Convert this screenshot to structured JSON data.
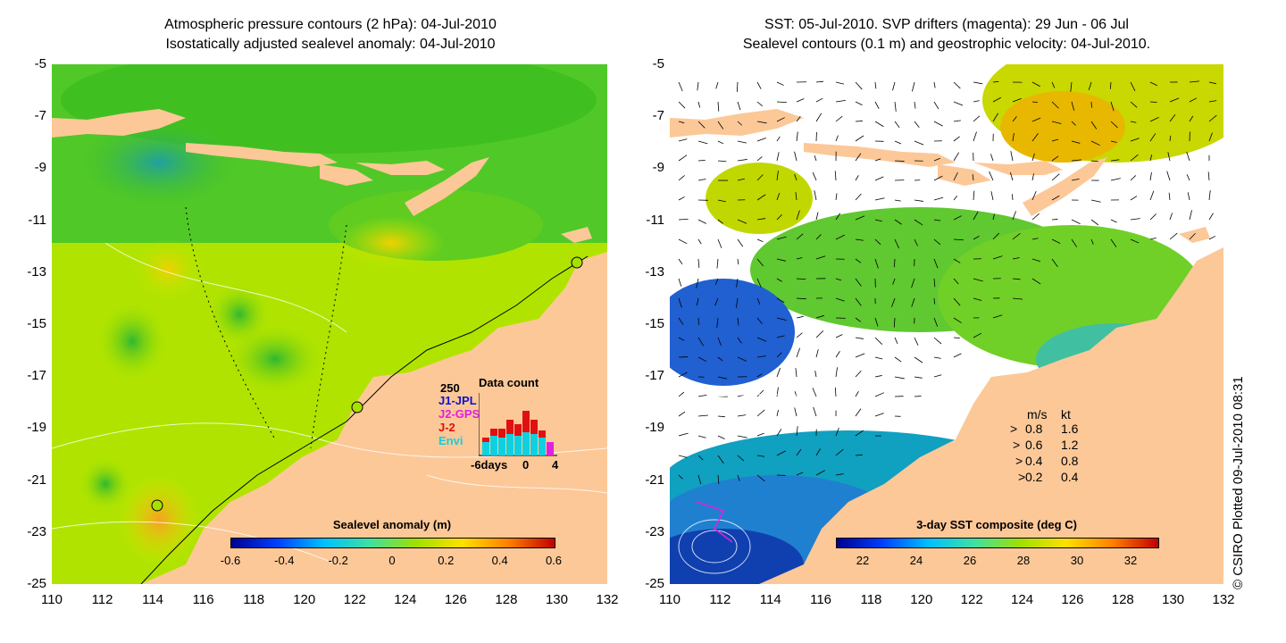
{
  "left_panel": {
    "title_line1": "Atmospheric pressure contours (2 hPa): 04-Jul-2010",
    "title_line2": "Isostatically adjusted sealevel anomaly: 04-Jul-2010",
    "colorbar_title": "Sealevel anomaly (m)",
    "colorbar_ticks": [
      "-0.6",
      "-0.4",
      "-0.2",
      "0",
      "0.2",
      "0.4",
      "0.6"
    ],
    "data_count": {
      "title": "Data count",
      "ymax_label": "250",
      "legend": [
        {
          "label": "J1-JPL",
          "color": "#1010d0"
        },
        {
          "label": "J2-GPS",
          "color": "#e020e0"
        },
        {
          "label": "J-2",
          "color": "#e01010"
        },
        {
          "label": "Envi",
          "color": "#10d0e0"
        }
      ],
      "x_labels": [
        "-6days",
        "0",
        "4"
      ]
    }
  },
  "right_panel": {
    "title_line1": "SST: 05-Jul-2010. SVP drifters (magenta): 29 Jun - 06 Jul",
    "title_line2": "Sealevel contours (0.1 m) and geostrophic velocity: 04-Jul-2010.",
    "colorbar_title": "3-day SST composite (deg C)",
    "colorbar_ticks": [
      "22",
      "24",
      "26",
      "28",
      "30",
      "32"
    ],
    "velocity_legend": {
      "header_ms": "m/s",
      "header_kt": "kt",
      "rows": [
        {
          "ms": "0.8",
          "kt": "1.6"
        },
        {
          "ms": "0.6",
          "kt": "1.2"
        },
        {
          "ms": "0.4",
          "kt": "0.8"
        },
        {
          "ms": "0.2",
          "kt": "0.4"
        }
      ]
    }
  },
  "y_ticks": [
    "-5",
    "-7",
    "-9",
    "-11",
    "-13",
    "-15",
    "-17",
    "-19",
    "-21",
    "-23",
    "-25"
  ],
  "x_ticks": [
    "110",
    "112",
    "114",
    "116",
    "118",
    "120",
    "122",
    "124",
    "126",
    "128",
    "130",
    "132"
  ],
  "credit": "© CSIRO Plotted 09-Jul-2010 08:31",
  "colors": {
    "land": "#fcc898",
    "ocean_green": "#a8e000",
    "ocean_dark_green": "#40c020",
    "sst_blue": "#1060d0"
  }
}
